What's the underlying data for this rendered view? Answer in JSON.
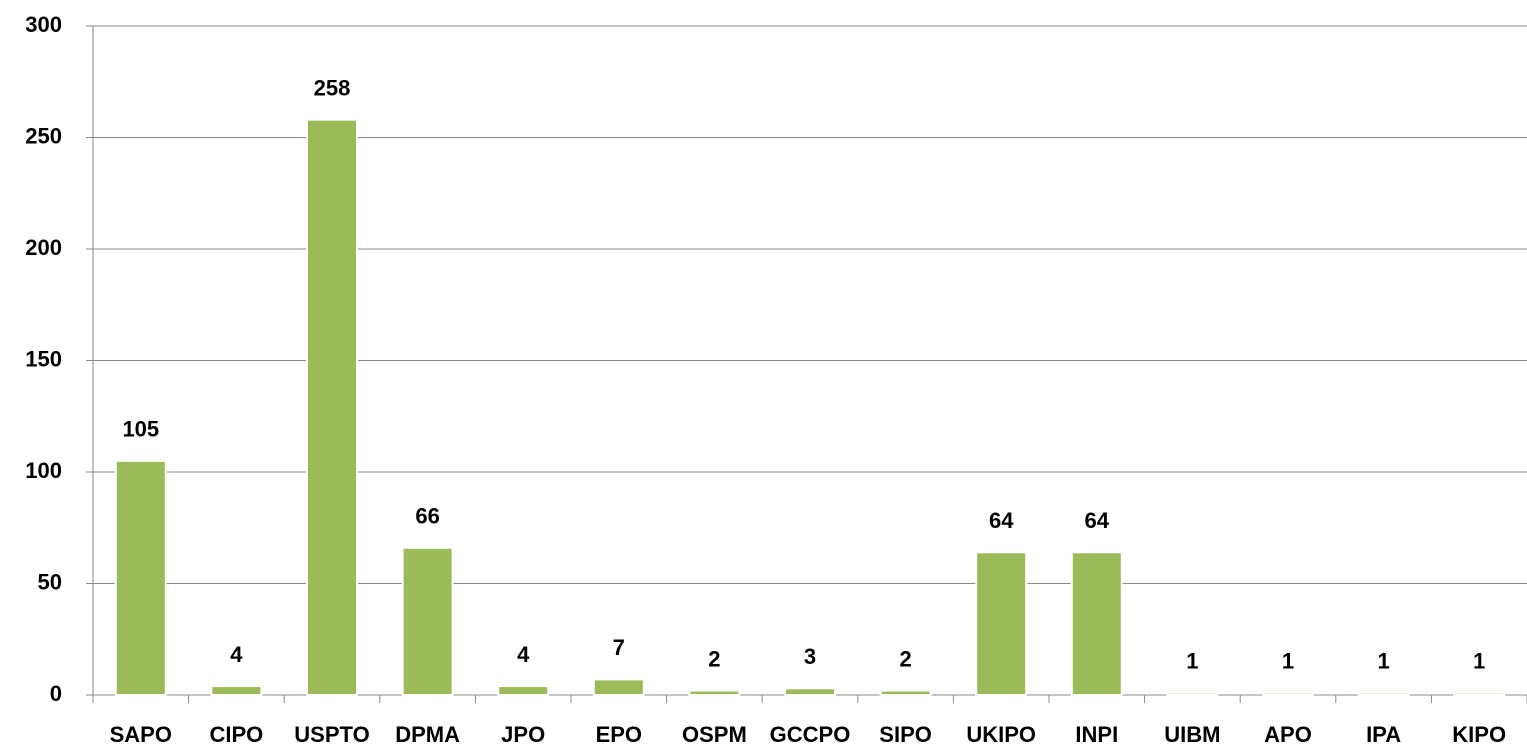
{
  "chart_data": {
    "type": "bar",
    "categories": [
      "SAPO",
      "CIPO",
      "USPTO",
      "DPMA",
      "JPO",
      "EPO",
      "OSPM",
      "GCCPO",
      "SIPO",
      "UKIPO",
      "INPI",
      "UIBM",
      "APO",
      "IPA",
      "KIPO"
    ],
    "values": [
      105,
      4,
      258,
      66,
      4,
      7,
      2,
      3,
      2,
      64,
      64,
      1,
      1,
      1,
      1
    ],
    "color": "#9bbb59",
    "ylim": [
      0,
      300
    ],
    "yticks": [
      0,
      50,
      100,
      150,
      200,
      250,
      300
    ],
    "grid": true
  }
}
